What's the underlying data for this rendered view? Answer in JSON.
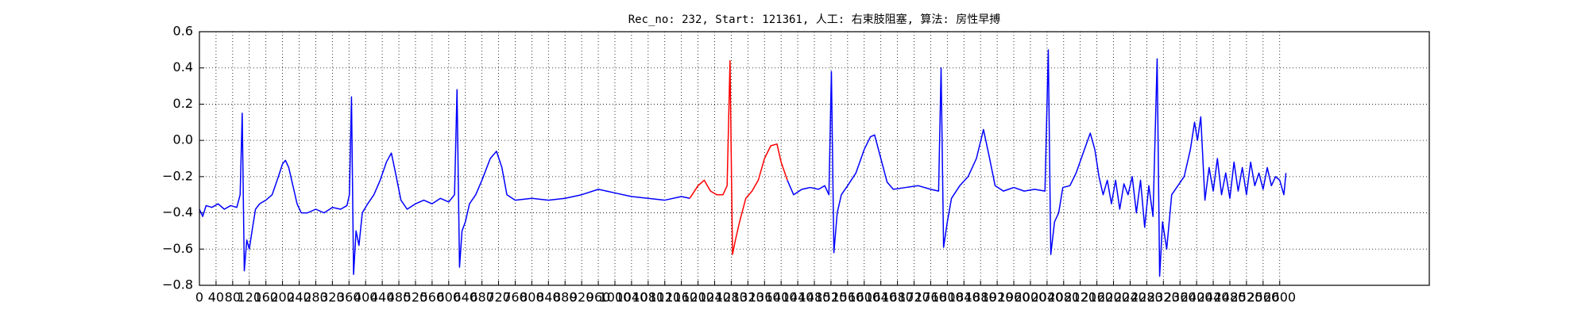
{
  "chart_data": {
    "type": "line",
    "title": "Rec_no: 232, Start: 121361, 人工: 右束肢阻塞, 算法: 房性早搏",
    "xlim": [
      0,
      2960
    ],
    "xticks": [
      0,
      40,
      80,
      120,
      160,
      200,
      240,
      280,
      320,
      360,
      400,
      440,
      480,
      520,
      560,
      600,
      640,
      680,
      720,
      760,
      800,
      840,
      880,
      920,
      960,
      1000,
      1040,
      1080,
      1120,
      1160,
      1200,
      1240,
      1280,
      1320,
      1360,
      1400,
      1440,
      1480,
      1520,
      1560,
      1600,
      1640,
      1680,
      1720,
      1760,
      1800,
      1840,
      1880,
      1920,
      1960,
      2000,
      2040,
      2080,
      2120,
      2160,
      2200,
      2240,
      2280,
      2320,
      2360,
      2400,
      2440,
      2480,
      2520,
      2560,
      2600
    ],
    "ylim": [
      -0.8,
      0.6
    ],
    "yticks": [
      {
        "value": -0.8,
        "label": "−0.8"
      },
      {
        "value": -0.6,
        "label": "−0.6"
      },
      {
        "value": -0.4,
        "label": "−0.4"
      },
      {
        "value": -0.2,
        "label": "−0.2"
      },
      {
        "value": 0,
        "label": "0.0"
      },
      0.2,
      0.4,
      0.6
    ],
    "grid": true,
    "series": [
      {
        "color": "#0000ff",
        "x": [
          0,
          8,
          16,
          30,
          45,
          60,
          75,
          90,
          98,
          103,
          108,
          114,
          120,
          128,
          135,
          145,
          160,
          175,
          190,
          200,
          207,
          215,
          225,
          235,
          245,
          260,
          280,
          300,
          320,
          340,
          355,
          361,
          366,
          371,
          377,
          384,
          392,
          405,
          420,
          435,
          450,
          462,
          472,
          485,
          500,
          520,
          540,
          560,
          580,
          600,
          614,
          620,
          626,
          632,
          640,
          650,
          665,
          680,
          700,
          715,
          728,
          740,
          760,
          800,
          840,
          880,
          920,
          960,
          1000,
          1040,
          1080,
          1120,
          1160,
          1180,
          1300,
          1415,
          1430,
          1450,
          1470,
          1490,
          1505,
          1515,
          1521,
          1527,
          1535,
          1545,
          1560,
          1580,
          1600,
          1615,
          1625,
          1640,
          1655,
          1670,
          1700,
          1730,
          1760,
          1779,
          1785,
          1791,
          1800,
          1810,
          1830,
          1850,
          1870,
          1887,
          1900,
          1915,
          1935,
          1960,
          1985,
          2010,
          2035,
          2043,
          2049,
          2058,
          2068,
          2078,
          2095,
          2110,
          2130,
          2144,
          2155,
          2165,
          2175,
          2185,
          2195,
          2205,
          2215,
          2225,
          2235,
          2245,
          2255,
          2265,
          2275,
          2285,
          2295,
          2305,
          2311,
          2318,
          2328,
          2340,
          2355,
          2370,
          2385,
          2395,
          2402,
          2410,
          2420,
          2430,
          2440,
          2450,
          2460,
          2470,
          2480,
          2490,
          2500,
          2510,
          2520,
          2530,
          2540,
          2550,
          2560,
          2570,
          2580,
          2590,
          2600,
          2610,
          2615
        ],
        "values": [
          -0.38,
          -0.42,
          -0.36,
          -0.37,
          -0.35,
          -0.38,
          -0.36,
          -0.37,
          -0.3,
          0.15,
          -0.72,
          -0.55,
          -0.6,
          -0.48,
          -0.38,
          -0.35,
          -0.33,
          -0.3,
          -0.2,
          -0.13,
          -0.11,
          -0.15,
          -0.25,
          -0.35,
          -0.4,
          -0.4,
          -0.38,
          -0.4,
          -0.37,
          -0.38,
          -0.36,
          -0.3,
          0.24,
          -0.74,
          -0.5,
          -0.58,
          -0.4,
          -0.35,
          -0.3,
          -0.22,
          -0.12,
          -0.07,
          -0.18,
          -0.33,
          -0.38,
          -0.35,
          -0.33,
          -0.35,
          -0.32,
          -0.34,
          -0.3,
          0.28,
          -0.7,
          -0.5,
          -0.45,
          -0.35,
          -0.3,
          -0.22,
          -0.1,
          -0.06,
          -0.15,
          -0.3,
          -0.33,
          -0.32,
          -0.33,
          -0.32,
          -0.3,
          -0.27,
          -0.29,
          -0.31,
          -0.32,
          -0.33,
          -0.31,
          -0.32,
          null,
          -0.22,
          -0.3,
          -0.27,
          -0.26,
          -0.27,
          -0.25,
          -0.3,
          0.38,
          -0.62,
          -0.4,
          -0.3,
          -0.25,
          -0.18,
          -0.05,
          0.02,
          0.03,
          -0.1,
          -0.23,
          -0.27,
          -0.26,
          -0.25,
          -0.27,
          -0.28,
          0.4,
          -0.59,
          -0.45,
          -0.32,
          -0.25,
          -0.2,
          -0.1,
          0.06,
          -0.08,
          -0.25,
          -0.28,
          -0.26,
          -0.28,
          -0.27,
          -0.28,
          0.5,
          -0.63,
          -0.45,
          -0.4,
          -0.26,
          -0.25,
          -0.18,
          -0.05,
          0.04,
          -0.05,
          -0.2,
          -0.3,
          -0.22,
          -0.35,
          -0.22,
          -0.38,
          -0.24,
          -0.3,
          -0.2,
          -0.4,
          -0.22,
          -0.48,
          -0.25,
          -0.42,
          0.45,
          -0.75,
          -0.45,
          -0.6,
          -0.3,
          -0.25,
          -0.2,
          -0.05,
          0.1,
          0,
          0.13,
          -0.33,
          -0.15,
          -0.28,
          -0.1,
          -0.3,
          -0.18,
          -0.32,
          -0.12,
          -0.28,
          -0.15,
          -0.3,
          -0.12,
          -0.25,
          -0.18,
          -0.27,
          -0.15,
          -0.25,
          -0.2,
          -0.22,
          -0.3,
          -0.18
        ]
      },
      {
        "color": "#ff0000",
        "x": [
          1180,
          1200,
          1215,
          1230,
          1245,
          1260,
          1270,
          1277,
          1283,
          1290,
          1300,
          1315,
          1330,
          1345,
          1360,
          1375,
          1390,
          1400,
          1415
        ],
        "values": [
          -0.32,
          -0.25,
          -0.22,
          -0.28,
          -0.3,
          -0.3,
          -0.25,
          0.44,
          -0.63,
          -0.55,
          -0.45,
          -0.32,
          -0.28,
          -0.22,
          -0.1,
          -0.03,
          -0.02,
          -0.12,
          -0.22
        ]
      }
    ]
  }
}
